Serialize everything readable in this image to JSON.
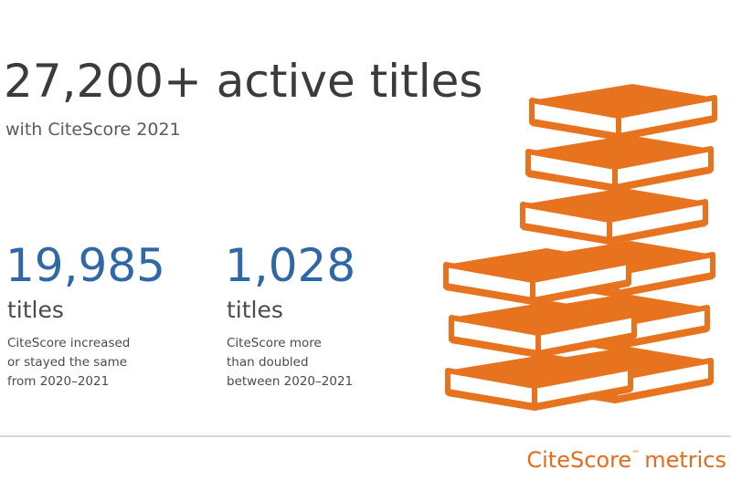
{
  "header": {
    "title": "27,200+ active titles",
    "subtitle": "with CiteScore 2021"
  },
  "stats": [
    {
      "value": "19,985",
      "unit": "titles",
      "description": [
        "CiteScore increased",
        "or stayed the same",
        "from 2020–2021"
      ]
    },
    {
      "value": "1,028",
      "unit": "titles",
      "description": [
        "CiteScore more",
        "than doubled",
        "between 2020–2021"
      ]
    }
  ],
  "footer": {
    "brand": "CiteScore",
    "mark": "™",
    "suffix": "metrics"
  }
}
